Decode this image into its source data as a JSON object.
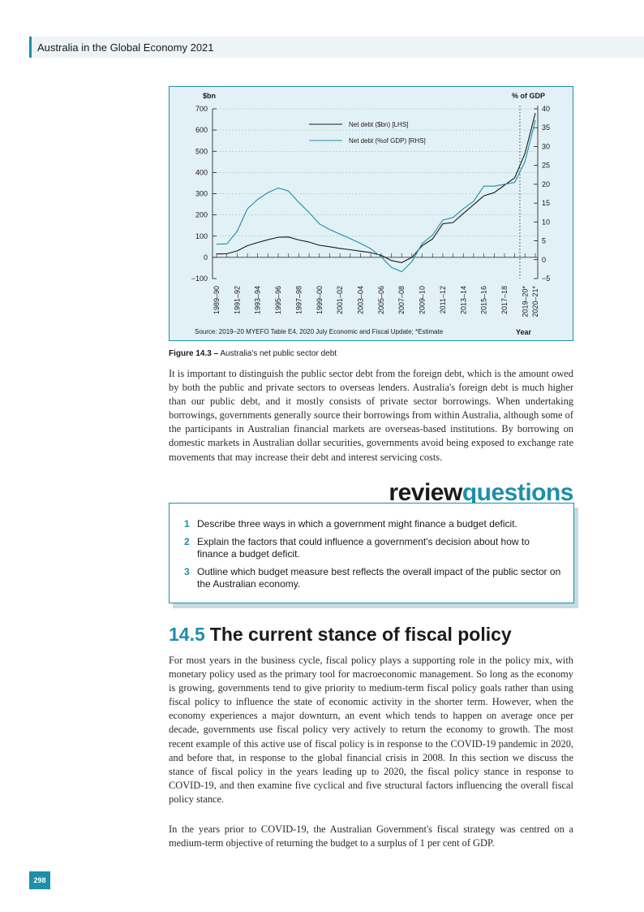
{
  "header": {
    "title": "Australia in the Global Economy 2021"
  },
  "chart_data": {
    "type": "line",
    "left_axis_title": "$bn",
    "right_axis_title": "% of GDP",
    "x_axis_title": "Year",
    "left_ylim": [
      -100,
      700
    ],
    "left_ticks": [
      "700",
      "600",
      "500",
      "400",
      "300",
      "200",
      "100",
      "0",
      "−100"
    ],
    "right_ylim": [
      -5,
      40
    ],
    "right_ticks": [
      "40",
      "35",
      "30",
      "25",
      "20",
      "15",
      "10",
      "5",
      "0",
      "−5"
    ],
    "categories": [
      "1989-90",
      "1990-91",
      "1991-92",
      "1992-93",
      "1993-94",
      "1994-95",
      "1995-96",
      "1996-97",
      "1997-98",
      "1998-99",
      "1999-00",
      "2000-01",
      "2001-02",
      "2002-03",
      "2003-04",
      "2004-05",
      "2005-06",
      "2006-07",
      "2007-08",
      "2008-09",
      "2009-10",
      "2010-11",
      "2011-12",
      "2012-13",
      "2013-14",
      "2014-15",
      "2015-16",
      "2016-17",
      "2017-18",
      "2018-19",
      "2019-20*",
      "2020-21*"
    ],
    "x_tick_labels": [
      "1989–90",
      "1991–92",
      "1993–94",
      "1995–96",
      "1997–98",
      "1999–00",
      "2001–02",
      "2003–04",
      "2005–06",
      "2007–08",
      "2009–10",
      "2011–12",
      "2013–14",
      "2015–16",
      "2017–18",
      "2019–20*",
      "2020–21*"
    ],
    "series": [
      {
        "name": "Net debt ($bn) [LHS]",
        "axis": "left",
        "color": "#1a1a1a",
        "values": [
          16,
          17,
          30,
          55,
          70,
          83,
          95,
          96,
          82,
          72,
          57,
          50,
          42,
          36,
          29,
          22,
          10,
          -15,
          -25,
          0,
          55,
          86,
          158,
          164,
          207,
          248,
          290,
          305,
          340,
          375,
          490,
          680
        ]
      },
      {
        "name": "Net debt (%of GDP) [RHS]",
        "axis": "right",
        "color": "#1d8fa8",
        "values": [
          4.1,
          4.2,
          7.5,
          13.5,
          16,
          17.8,
          19,
          18.2,
          15.2,
          12.5,
          9.5,
          8,
          6.8,
          5.6,
          4.3,
          2.9,
          0.8,
          -2,
          -3.2,
          -0.5,
          4.3,
          6.5,
          10.5,
          11.2,
          13.5,
          15.5,
          19.5,
          19.5,
          20,
          20.5,
          26,
          37
        ]
      }
    ],
    "source": "Source: 2019–20 MYEFO Table E4, 2020 July Economic and Fiscal Update; *Estimate"
  },
  "figure": {
    "label": "Figure 14.3 –",
    "caption": "Australia's net public sector debt"
  },
  "paragraph_1": "It is important to distinguish the public sector debt from the foreign debt, which is the amount owed by both the public and private sectors to overseas lenders. Australia's foreign debt is much higher than our public debt, and it mostly consists of private sector borrowings. When undertaking borrowings, governments generally source their borrowings from within Australia, although some of the participants in Australian financial markets are overseas-based institutions. By borrowing on domestic markets in Australian dollar securities, governments avoid being exposed to exchange rate movements that may increase their debt and interest servicing costs.",
  "review": {
    "title_part1": "review",
    "title_part2": "questions",
    "questions": [
      {
        "num": "1",
        "text": "Describe three ways in which a government might finance a budget deficit."
      },
      {
        "num": "2",
        "text": "Explain the factors that could influence a government's decision about how to finance a budget deficit."
      },
      {
        "num": "3",
        "text": "Outline which budget measure best reflects the overall impact of the public sector on the Australian economy."
      }
    ]
  },
  "section": {
    "number": "14.5",
    "title": "The current stance of fiscal policy"
  },
  "paragraph_2": "For most years in the business cycle, fiscal policy plays a supporting role in the policy mix, with monetary policy used as  the primary tool for macroeconomic management. So long as the economy is growing, governments tend to give priority to medium-term fiscal policy goals rather than using fiscal policy to influence the state of economic activity in the shorter term. However, when the economy experiences a major downturn, an event which tends to happen on average once per decade, governments use fiscal policy very actively to return the economy to growth. The most recent example of this active use of fiscal policy is in response to the COVID-19 pandemic in 2020, and before that, in response to the global financial crisis in 2008. In this section we discuss the stance of fiscal policy in the years leading up to 2020, the fiscal policy stance in response to COVID-19, and then examine five cyclical and five structural factors influencing the overall fiscal policy stance.",
  "paragraph_3": "In the years prior to COVID-19, the Australian Government's fiscal strategy was centred on a medium-term objective of returning the budget to a surplus of 1 per cent of GDP.",
  "page_number": "298"
}
